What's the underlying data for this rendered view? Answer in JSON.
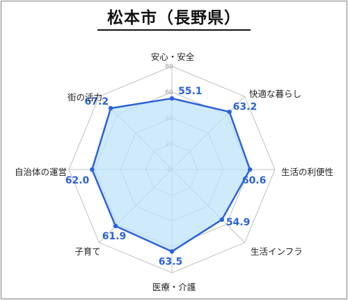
{
  "chart_data": {
    "type": "radar",
    "title": "松本市（長野県）",
    "categories": [
      "安心・安全",
      "快適な暮らし",
      "生活の利便性",
      "生活インフラ",
      "医療・介護",
      "子育て",
      "自治体の運営",
      "街の活力"
    ],
    "series": [
      {
        "values": [
          55.1,
          63.2,
          60.6,
          54.9,
          63.5,
          61.9,
          62.0,
          67.2
        ]
      }
    ],
    "rlim": [
      0,
      80
    ],
    "ticks": [
      0,
      20,
      40,
      60,
      80
    ],
    "grid": true,
    "colors": {
      "line": "#2a62d8",
      "fill": "#bfe3f9",
      "value_text": "#2a62d8",
      "grid": "#bfbfbf",
      "tick_text": "#9a9a9a"
    }
  }
}
